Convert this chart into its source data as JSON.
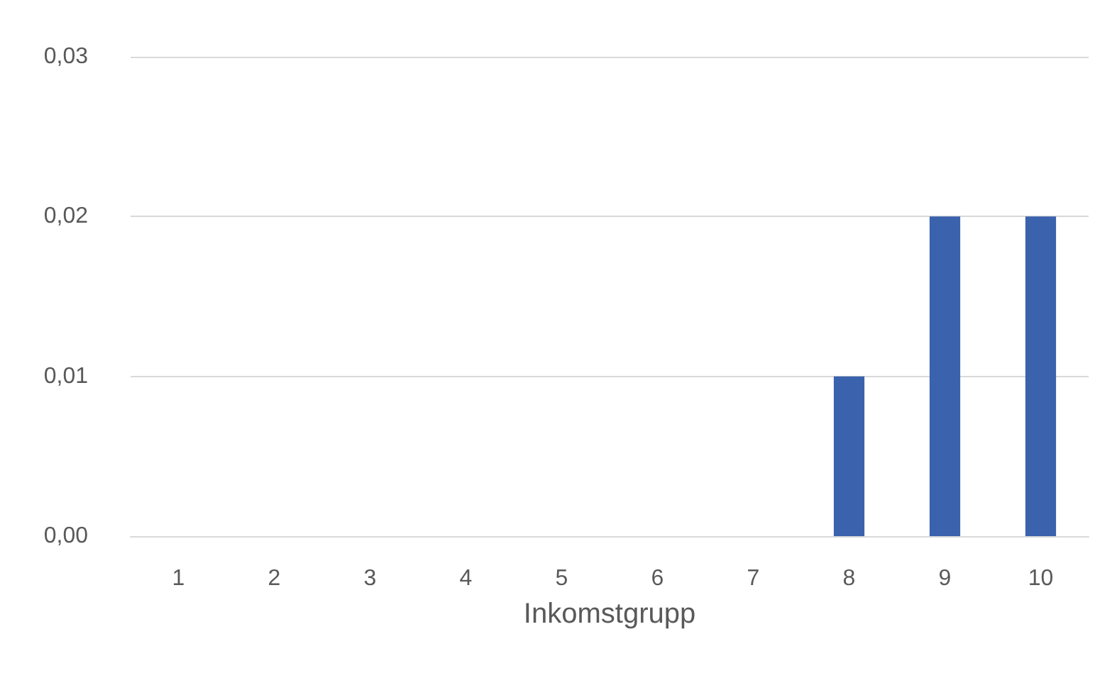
{
  "chart_data": {
    "type": "bar",
    "xlabel": "Inkomstgrupp",
    "categories": [
      "1",
      "2",
      "3",
      "4",
      "5",
      "6",
      "7",
      "8",
      "9",
      "10"
    ],
    "values": [
      0,
      0,
      0,
      0,
      0,
      0,
      0,
      0.01,
      0.02,
      0.02
    ],
    "color": "#3a62ad",
    "ylim": [
      0,
      0.03
    ],
    "yticks": [
      {
        "value": 0,
        "label": "0,00"
      },
      {
        "value": 0.01,
        "label": "0,01"
      },
      {
        "value": 0.02,
        "label": "0,02"
      },
      {
        "value": 0.03,
        "label": "0,03"
      }
    ],
    "grid": "y"
  }
}
